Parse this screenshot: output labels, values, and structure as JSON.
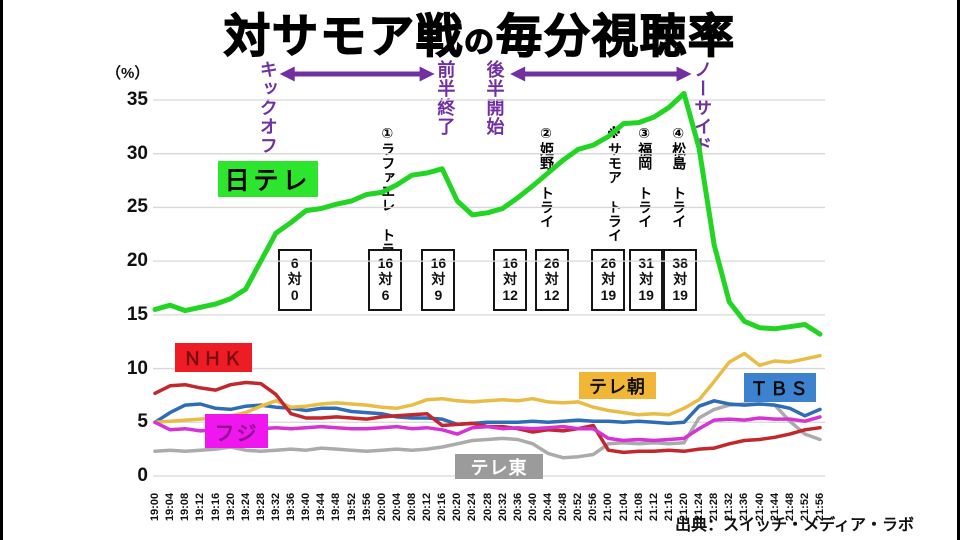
{
  "title": {
    "part1": "対サモア戦",
    "part2": "の",
    "part3": "毎分視聴率"
  },
  "y_axis": {
    "unit": "（%）",
    "ticks": [
      0,
      5,
      10,
      15,
      20,
      25,
      30,
      35
    ]
  },
  "source": "出典：スイッチ・メディア・ラボ",
  "phases": {
    "color": "#7030a0",
    "labels": [
      {
        "text": "キックオフ",
        "time": "19:30"
      },
      {
        "text": "前半終了",
        "time": "20:17"
      },
      {
        "text": "後半開始",
        "time": "20:30"
      },
      {
        "text": "ノーサイド",
        "time": "21:25"
      }
    ],
    "arrows": [
      {
        "from": "19:33",
        "to": "20:14"
      },
      {
        "from": "20:34",
        "to": "21:22"
      }
    ]
  },
  "tries": {
    "items": [
      {
        "label": "①ラファエレ トライ",
        "time": "20:02"
      },
      {
        "label": "②姫野 トライ",
        "time": "20:44"
      },
      {
        "label": "※サモア トライ",
        "time": "21:02"
      },
      {
        "label": "③福岡 トライ",
        "time": "21:10"
      },
      {
        "label": "④松島 トライ",
        "time": "21:19"
      }
    ]
  },
  "scores": {
    "vs_char": "対",
    "items": [
      {
        "home": "6",
        "away": "0",
        "time": "19:37"
      },
      {
        "home": "16",
        "away": "6",
        "time": "20:01"
      },
      {
        "home": "16",
        "away": "9",
        "time": "20:15"
      },
      {
        "home": "16",
        "away": "12",
        "time": "20:34"
      },
      {
        "home": "26",
        "away": "12",
        "time": "20:45"
      },
      {
        "home": "26",
        "away": "19",
        "time": "21:00"
      },
      {
        "home": "31",
        "away": "19",
        "time": "21:10"
      },
      {
        "home": "38",
        "away": "19",
        "time": "21:19"
      }
    ]
  },
  "channels": [
    {
      "label": "日テレ",
      "bg": "#2ce52c",
      "fg": "#000000"
    },
    {
      "label": "ＮＨＫ",
      "bg": "#ee1c24",
      "fg": "#7a0d12"
    },
    {
      "label": "テレ朝",
      "bg": "#f2b637",
      "fg": "#111111"
    },
    {
      "label": "ＴＢＳ",
      "bg": "#3d82cf",
      "fg": "#0a0a0a"
    },
    {
      "label": "フジ",
      "bg": "#ef16ef",
      "fg": "#8b0b8b"
    },
    {
      "label": "テレ東",
      "bg": "#9b9b9b",
      "fg": "#ffffff"
    }
  ],
  "chart_data": {
    "type": "line",
    "title": "対サモア戦の毎分視聴率",
    "xlabel": "",
    "ylabel": "（%）",
    "ylim": [
      0,
      37
    ],
    "grid": "horizontal",
    "x_labels": [
      "19:00",
      "19:04",
      "19:08",
      "19:12",
      "19:16",
      "19:20",
      "19:24",
      "19:28",
      "19:32",
      "19:36",
      "19:40",
      "19:44",
      "19:48",
      "19:52",
      "19:56",
      "20:00",
      "20:04",
      "20:08",
      "20:12",
      "20:16",
      "20:20",
      "20:24",
      "20:28",
      "20:32",
      "20:36",
      "20:40",
      "20:44",
      "20:48",
      "20:52",
      "20:56",
      "21:00",
      "21:04",
      "21:08",
      "21:12",
      "21:16",
      "21:20",
      "21:24",
      "21:28",
      "21:32",
      "21:36",
      "21:40",
      "21:44",
      "21:48",
      "21:52",
      "21:56"
    ],
    "series": [
      {
        "name": "テレ東",
        "color": "#ababab",
        "values": [
          2.3,
          2.4,
          2.3,
          2.4,
          2.5,
          2.7,
          2.4,
          2.3,
          2.4,
          2.5,
          2.4,
          2.6,
          2.5,
          2.4,
          2.3,
          2.4,
          2.5,
          2.4,
          2.5,
          2.7,
          3.0,
          3.3,
          3.4,
          3.5,
          3.4,
          3.0,
          2.1,
          1.7,
          1.8,
          2.0,
          3.0,
          3.1,
          3.0,
          3.1,
          3.0,
          3.1,
          5.4,
          6.2,
          6.6,
          6.7,
          6.7,
          6.6,
          5.1,
          3.9,
          3.4
        ]
      },
      {
        "name": "ＴＢＳ",
        "color": "#2e6db6",
        "values": [
          5.0,
          5.9,
          6.6,
          6.7,
          6.3,
          6.2,
          6.5,
          6.6,
          6.4,
          6.3,
          6.1,
          6.3,
          6.3,
          6.0,
          5.9,
          5.8,
          5.5,
          5.4,
          5.4,
          5.3,
          4.8,
          4.9,
          5.0,
          5.0,
          5.0,
          5.1,
          5.0,
          5.1,
          5.2,
          5.1,
          5.1,
          5.0,
          5.1,
          5.0,
          4.9,
          5.0,
          6.5,
          7.0,
          6.7,
          6.6,
          6.7,
          6.6,
          6.3,
          5.6,
          6.2
        ]
      },
      {
        "name": "テレ朝",
        "color": "#e9bc45",
        "values": [
          5.0,
          5.1,
          5.2,
          5.3,
          5.4,
          5.6,
          5.9,
          6.5,
          7.0,
          6.4,
          6.5,
          6.7,
          6.8,
          6.7,
          6.6,
          6.4,
          6.3,
          6.6,
          7.1,
          7.2,
          7.0,
          6.9,
          7.0,
          7.1,
          7.0,
          7.2,
          6.9,
          6.8,
          6.9,
          6.4,
          6.1,
          5.9,
          5.7,
          5.8,
          5.7,
          6.3,
          7.1,
          8.8,
          10.6,
          11.4,
          10.3,
          10.7,
          10.6,
          10.9,
          11.2
        ]
      },
      {
        "name": "ＮＨＫ",
        "color": "#c1272d",
        "values": [
          7.7,
          8.4,
          8.5,
          8.2,
          8.0,
          8.5,
          8.7,
          8.6,
          7.6,
          5.8,
          5.4,
          5.4,
          5.5,
          5.4,
          5.3,
          5.5,
          5.6,
          5.7,
          5.8,
          4.7,
          4.8,
          4.9,
          4.6,
          4.6,
          4.4,
          4.1,
          4.3,
          4.2,
          4.4,
          4.7,
          2.4,
          2.2,
          2.3,
          2.3,
          2.4,
          2.3,
          2.5,
          2.6,
          3.0,
          3.3,
          3.4,
          3.6,
          3.9,
          4.3,
          4.5
        ]
      },
      {
        "name": "フジ",
        "color": "#d633d6",
        "values": [
          5.0,
          4.3,
          4.4,
          4.2,
          4.3,
          4.5,
          4.4,
          4.4,
          4.5,
          4.4,
          4.5,
          4.6,
          4.5,
          4.4,
          4.4,
          4.5,
          4.6,
          4.4,
          4.5,
          4.3,
          3.9,
          4.5,
          4.6,
          4.4,
          4.5,
          4.4,
          4.5,
          4.6,
          4.4,
          4.4,
          3.5,
          3.3,
          3.4,
          3.3,
          3.4,
          3.5,
          4.4,
          5.2,
          5.3,
          5.2,
          5.4,
          5.3,
          5.3,
          5.1,
          5.5
        ]
      },
      {
        "name": "日テレ",
        "color": "#23d523",
        "values": [
          15.5,
          15.9,
          15.4,
          15.7,
          16.0,
          16.5,
          17.4,
          20.0,
          22.6,
          23.6,
          24.7,
          24.9,
          25.3,
          25.6,
          26.2,
          26.4,
          27.1,
          28.0,
          28.2,
          28.6,
          25.6,
          24.3,
          24.5,
          24.9,
          25.9,
          27.0,
          28.2,
          29.4,
          30.4,
          30.8,
          31.6,
          32.8,
          32.9,
          33.4,
          34.3,
          35.6,
          30.5,
          21.5,
          16.2,
          14.4,
          13.8,
          13.7,
          13.9,
          14.1,
          13.2
        ]
      }
    ]
  }
}
